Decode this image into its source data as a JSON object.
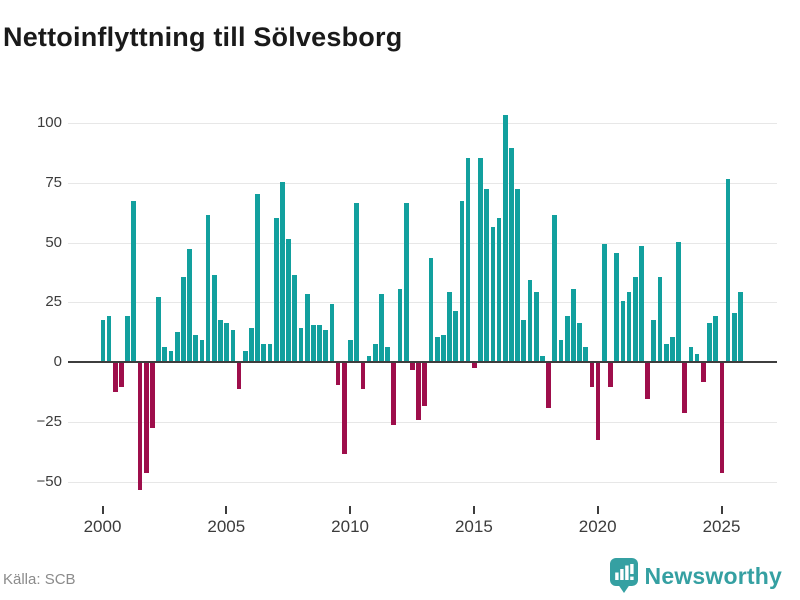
{
  "source": "Källa: SCB",
  "brand": {
    "name": "Newsworthy"
  },
  "colors": {
    "positive_bar": "#12a09e",
    "negative_bar": "#9e0e4b",
    "gridline": "#e7e7e7",
    "zero_line": "#3d3d3d",
    "tick_text": "#3c3c3c",
    "muted_text": "#8b8b8b",
    "brand_teal": "#35a0a2",
    "title_text": "#1a1a1a",
    "background": "#ffffff"
  },
  "chart_data": {
    "type": "bar",
    "title": "Nettoinflyttning till Sölvesborg",
    "frequency": "quarterly",
    "start": "2000 Q1",
    "end": "2025 Q4",
    "xlabel": "",
    "ylabel": "",
    "ylim": [
      -58,
      112
    ],
    "grid": true,
    "legend": "none",
    "y_ticks": [
      100,
      75,
      50,
      25,
      0,
      -25,
      -50
    ],
    "x_tick_years": [
      2000,
      2005,
      2010,
      2015,
      2020,
      2025
    ],
    "periods": [
      {
        "year": 2000,
        "values": [
          17,
          19,
          -12,
          -10
        ]
      },
      {
        "year": 2001,
        "values": [
          19,
          67,
          -53,
          -46
        ]
      },
      {
        "year": 2002,
        "values": [
          -27,
          27,
          6,
          4
        ]
      },
      {
        "year": 2003,
        "values": [
          12,
          35,
          47,
          11
        ]
      },
      {
        "year": 2004,
        "values": [
          9,
          61,
          36,
          17
        ]
      },
      {
        "year": 2005,
        "values": [
          16,
          13,
          -11,
          4
        ]
      },
      {
        "year": 2006,
        "values": [
          14,
          70,
          7,
          7
        ]
      },
      {
        "year": 2007,
        "values": [
          60,
          75,
          51,
          36
        ]
      },
      {
        "year": 2008,
        "values": [
          14,
          28,
          15,
          15
        ]
      },
      {
        "year": 2009,
        "values": [
          13,
          24,
          -9,
          -38
        ]
      },
      {
        "year": 2010,
        "values": [
          9,
          66,
          -11,
          2
        ]
      },
      {
        "year": 2011,
        "values": [
          7,
          28,
          6,
          -26
        ]
      },
      {
        "year": 2012,
        "values": [
          30,
          66,
          -3,
          -24
        ]
      },
      {
        "year": 2013,
        "values": [
          -18,
          43,
          10,
          11
        ]
      },
      {
        "year": 2014,
        "values": [
          29,
          21,
          67,
          85
        ]
      },
      {
        "year": 2015,
        "values": [
          -2,
          85,
          72,
          56
        ]
      },
      {
        "year": 2016,
        "values": [
          60,
          103,
          89,
          72
        ]
      },
      {
        "year": 2017,
        "values": [
          17,
          34,
          29,
          2
        ]
      },
      {
        "year": 2018,
        "values": [
          -19,
          61,
          9,
          19
        ]
      },
      {
        "year": 2019,
        "values": [
          30,
          16,
          6,
          -10
        ]
      },
      {
        "year": 2020,
        "values": [
          -32,
          49,
          -10,
          45
        ]
      },
      {
        "year": 2021,
        "values": [
          25,
          29,
          35,
          48
        ]
      },
      {
        "year": 2022,
        "values": [
          -15,
          17,
          35,
          7
        ]
      },
      {
        "year": 2023,
        "values": [
          10,
          50,
          -21,
          6
        ]
      },
      {
        "year": 2024,
        "values": [
          3,
          -8,
          16,
          19
        ]
      },
      {
        "year": 2025,
        "values": [
          -46,
          76,
          20,
          29
        ]
      }
    ]
  }
}
